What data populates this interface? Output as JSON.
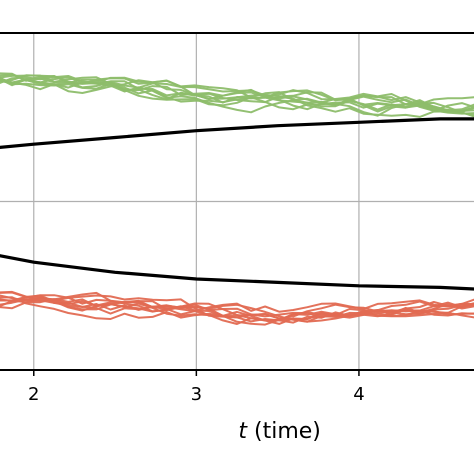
{
  "chart_data": {
    "type": "line",
    "title": "",
    "xlabel_var": "t",
    "xlabel_rest": " (time)",
    "ylabel": "",
    "xlim": [
      1.78,
      4.72
    ],
    "ylim": [
      -1.0,
      1.0
    ],
    "x_ticks": [
      2,
      3,
      4
    ],
    "x_tick_labels": [
      "2",
      "3",
      "4"
    ],
    "y_grid": [
      0
    ],
    "grid": true,
    "legend": "none",
    "colors": {
      "green": "#8dbd6a",
      "red": "#e16a52",
      "mean": "#000000",
      "grid": "#b0b0b0"
    },
    "series": [
      {
        "group": "upper",
        "kind": "mean",
        "x": [
          1.78,
          2.0,
          2.5,
          3.0,
          3.5,
          4.0,
          4.5,
          4.72
        ],
        "y": [
          0.32,
          0.34,
          0.38,
          0.42,
          0.45,
          0.47,
          0.49,
          0.49
        ]
      },
      {
        "group": "lower",
        "kind": "mean",
        "x": [
          1.78,
          2.0,
          2.5,
          3.0,
          3.5,
          4.0,
          4.5,
          4.72
        ],
        "y": [
          -0.32,
          -0.36,
          -0.42,
          -0.46,
          -0.48,
          -0.5,
          -0.51,
          -0.52
        ]
      }
    ],
    "trajectory_bands": [
      {
        "group": "upper",
        "color_key": "green",
        "count": 10,
        "base": [
          0.72,
          0.62,
          0.55
        ],
        "deviation": 0.08
      },
      {
        "group": "lower",
        "color_key": "red",
        "count": 10,
        "base": [
          -0.58,
          -0.68,
          -0.62
        ],
        "deviation": 0.07
      }
    ]
  }
}
